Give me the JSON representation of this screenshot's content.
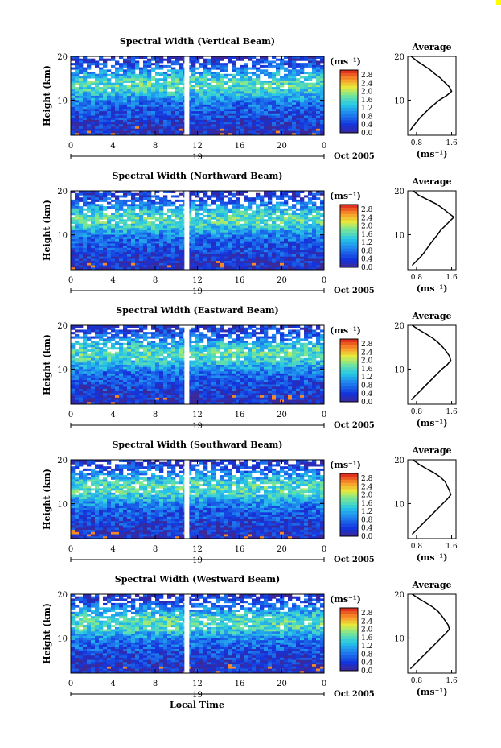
{
  "figure": {
    "common_xlabel": "Local Time",
    "corner_dot_color": "#ffff00"
  },
  "chart_data": [
    {
      "type": "heatmap",
      "title": "Spectral Width (Vertical Beam)",
      "ylabel": "Height (km)",
      "ylim": [
        2,
        20
      ],
      "yticks": [
        "20",
        "10"
      ],
      "xlim": [
        0,
        24
      ],
      "xticks": [
        "0",
        "4",
        "8",
        "12",
        "16",
        "20",
        "0"
      ],
      "date_marker": "19",
      "date_label": "Oct 2005",
      "colorbar": {
        "unit": "(ms⁻¹)",
        "ticks": [
          "2.8",
          "2.4",
          "2.0",
          "1.6",
          "1.2",
          "0.8",
          "0.4",
          "0.0"
        ]
      },
      "data_gap_local_time": 11,
      "profile": {
        "title": "Average",
        "xlabel": "(ms⁻¹)",
        "xticks": [
          "0.8",
          "1.6"
        ],
        "yticks": [
          "20",
          "10"
        ],
        "xlim": [
          0.6,
          1.7
        ],
        "heights": [
          3,
          4,
          5,
          6,
          7,
          8,
          9,
          10,
          11,
          12,
          13,
          14,
          15,
          16,
          17,
          18,
          19,
          20
        ],
        "values": [
          0.65,
          0.72,
          0.8,
          0.88,
          0.98,
          1.08,
          1.2,
          1.32,
          1.48,
          1.6,
          1.55,
          1.45,
          1.35,
          1.22,
          1.1,
          0.95,
          0.8,
          0.68
        ]
      }
    },
    {
      "type": "heatmap",
      "title": "Spectral Width (Northward Beam)",
      "ylabel": "Height (km)",
      "ylim": [
        2,
        20
      ],
      "yticks": [
        "20",
        "10"
      ],
      "xlim": [
        0,
        24
      ],
      "xticks": [
        "0",
        "4",
        "8",
        "12",
        "16",
        "20",
        "0"
      ],
      "date_marker": "19",
      "date_label": "Oct 2005",
      "colorbar": {
        "unit": "(ms⁻¹)",
        "ticks": [
          "2.8",
          "2.4",
          "2.0",
          "1.6",
          "1.2",
          "0.8",
          "0.4",
          "0.0"
        ]
      },
      "data_gap_local_time": 11,
      "profile": {
        "title": "Average",
        "xlabel": "(ms⁻¹)",
        "xticks": [
          "0.8",
          "1.6"
        ],
        "yticks": [
          "20",
          "10"
        ],
        "xlim": [
          0.6,
          1.7
        ],
        "heights": [
          3,
          4,
          5,
          6,
          7,
          8,
          9,
          10,
          11,
          12,
          13,
          14,
          15,
          16,
          17,
          18,
          19,
          20
        ],
        "values": [
          0.7,
          0.8,
          0.9,
          0.98,
          1.05,
          1.12,
          1.2,
          1.28,
          1.35,
          1.45,
          1.55,
          1.65,
          1.52,
          1.4,
          1.25,
          1.05,
          0.85,
          0.72
        ]
      }
    },
    {
      "type": "heatmap",
      "title": "Spectral Width (Eastward Beam)",
      "ylabel": "Height (km)",
      "ylim": [
        2,
        20
      ],
      "yticks": [
        "20",
        "10"
      ],
      "xlim": [
        0,
        24
      ],
      "xticks": [
        "0",
        "4",
        "8",
        "12",
        "16",
        "20",
        "0"
      ],
      "date_marker": "19",
      "date_label": "Oct 2005",
      "colorbar": {
        "unit": "(ms⁻¹)",
        "ticks": [
          "2.8",
          "2.4",
          "2.0",
          "1.6",
          "1.2",
          "0.8",
          "0.4",
          "0.0"
        ]
      },
      "data_gap_local_time": 11,
      "profile": {
        "title": "Average",
        "xlabel": "(ms⁻¹)",
        "xticks": [
          "0.8",
          "1.6"
        ],
        "yticks": [
          "20",
          "10"
        ],
        "xlim": [
          0.6,
          1.7
        ],
        "heights": [
          3,
          4,
          5,
          6,
          7,
          8,
          9,
          10,
          11,
          12,
          13,
          14,
          15,
          16,
          17,
          18,
          19,
          20
        ],
        "values": [
          0.68,
          0.78,
          0.88,
          0.98,
          1.08,
          1.18,
          1.28,
          1.38,
          1.5,
          1.58,
          1.55,
          1.48,
          1.4,
          1.3,
          1.18,
          1.02,
          0.85,
          0.7
        ]
      }
    },
    {
      "type": "heatmap",
      "title": "Spectral Width (Southward Beam)",
      "ylabel": "Height (km)",
      "ylim": [
        2,
        20
      ],
      "yticks": [
        "20",
        "10"
      ],
      "xlim": [
        0,
        24
      ],
      "xticks": [
        "0",
        "4",
        "8",
        "12",
        "16",
        "20",
        "0"
      ],
      "date_marker": "19",
      "date_label": "Oct 2005",
      "colorbar": {
        "unit": "(ms⁻¹)",
        "ticks": [
          "2.8",
          "2.4",
          "2.0",
          "1.6",
          "1.2",
          "0.8",
          "0.4",
          "0.0"
        ]
      },
      "data_gap_local_time": 11,
      "profile": {
        "title": "Average",
        "xlabel": "(ms⁻¹)",
        "xticks": [
          "0.8",
          "1.6"
        ],
        "yticks": [
          "20",
          "10"
        ],
        "xlim": [
          0.6,
          1.7
        ],
        "heights": [
          3,
          4,
          5,
          6,
          7,
          8,
          9,
          10,
          11,
          12,
          13,
          14,
          15,
          16,
          17,
          18,
          19,
          20
        ],
        "values": [
          0.7,
          0.8,
          0.9,
          1.0,
          1.1,
          1.2,
          1.3,
          1.4,
          1.5,
          1.58,
          1.55,
          1.5,
          1.45,
          1.35,
          1.2,
          1.02,
          0.85,
          0.72
        ]
      }
    },
    {
      "type": "heatmap",
      "title": "Spectral Width (Westward Beam)",
      "ylabel": "Height (km)",
      "ylim": [
        2,
        20
      ],
      "yticks": [
        "20",
        "10"
      ],
      "xlim": [
        0,
        24
      ],
      "xticks": [
        "0",
        "4",
        "8",
        "12",
        "16",
        "20",
        "0"
      ],
      "date_marker": "19",
      "date_label": "Oct 2005",
      "colorbar": {
        "unit": "(ms⁻¹)",
        "ticks": [
          "2.8",
          "2.4",
          "2.0",
          "1.6",
          "1.2",
          "0.8",
          "0.4",
          "0.0"
        ]
      },
      "data_gap_local_time": 11,
      "profile": {
        "title": "Average",
        "xlabel": "(ms⁻¹)",
        "xticks": [
          "0.8",
          "1.6"
        ],
        "yticks": [
          "20",
          "10"
        ],
        "xlim": [
          0.6,
          1.7
        ],
        "heights": [
          3,
          4,
          5,
          6,
          7,
          8,
          9,
          10,
          11,
          12,
          13,
          14,
          15,
          16,
          17,
          18,
          19,
          20
        ],
        "values": [
          0.66,
          0.76,
          0.86,
          0.96,
          1.06,
          1.16,
          1.26,
          1.36,
          1.46,
          1.55,
          1.52,
          1.45,
          1.38,
          1.3,
          1.18,
          1.02,
          0.85,
          0.7
        ]
      }
    }
  ]
}
